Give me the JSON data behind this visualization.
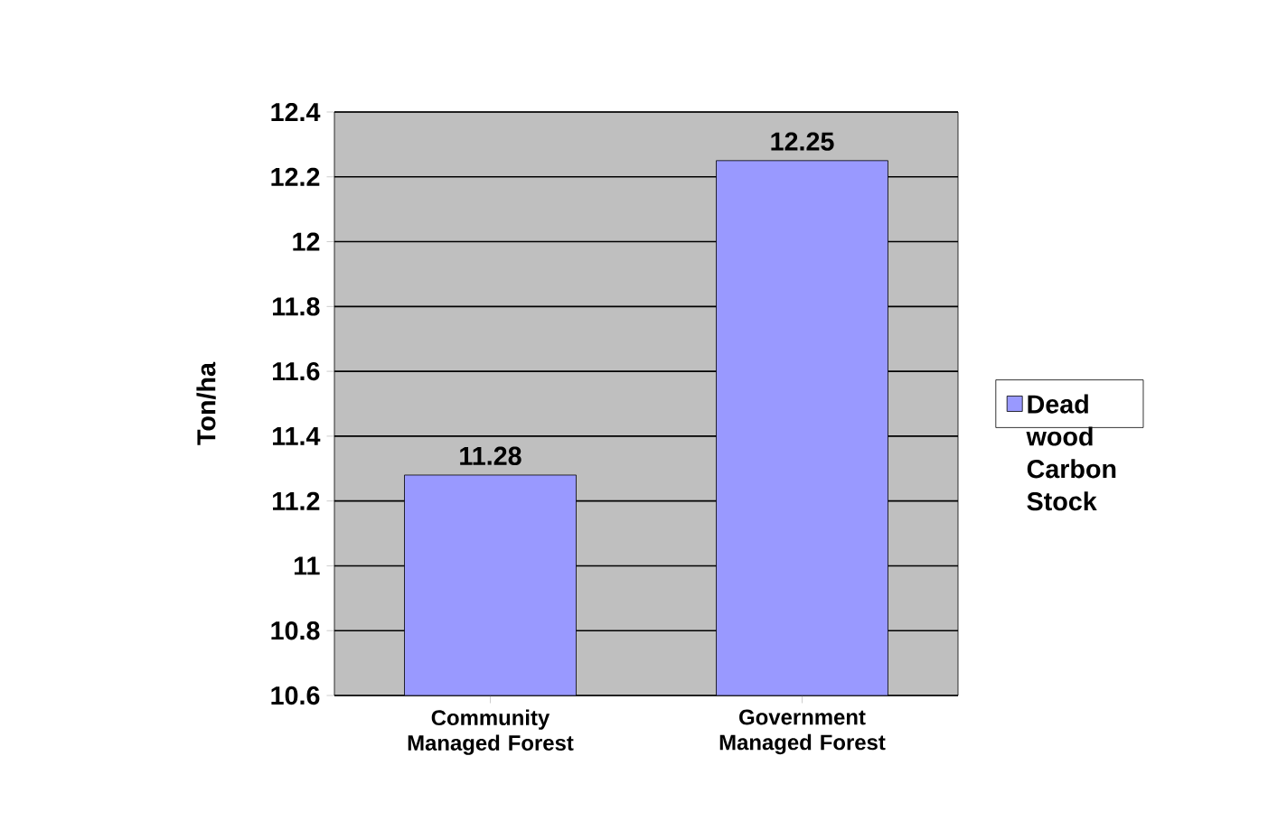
{
  "chart_data": {
    "type": "bar",
    "ylabel": "Ton/ha",
    "categories": [
      "Community Managed Forest",
      "Government Managed Forest"
    ],
    "series": [
      {
        "name": "Dead wood Carbon Stock",
        "color": "#9999ff",
        "values": [
          11.28,
          12.25
        ]
      }
    ],
    "ylim": [
      10.6,
      12.4
    ],
    "yticks": [
      10.6,
      10.8,
      11,
      11.2,
      11.4,
      11.6,
      11.8,
      12,
      12.2,
      12.4
    ],
    "grid": "y",
    "legend": "right",
    "data_labels": true
  }
}
